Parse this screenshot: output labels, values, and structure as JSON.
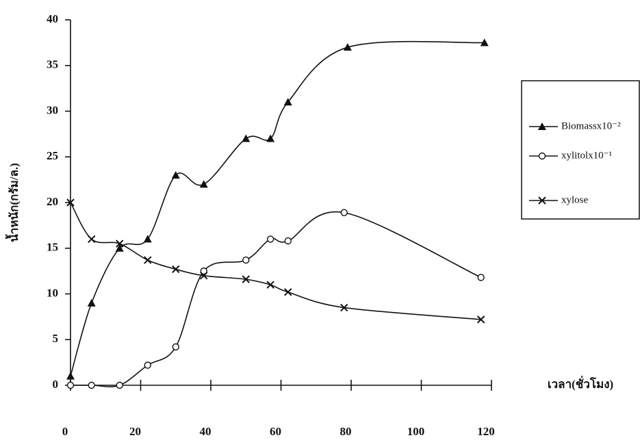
{
  "chart_data": {
    "type": "line",
    "x_label": "เวลา(ชั่วโมง)",
    "y_label": "น้ำหนัก(กรัม/ล.)",
    "xlim": [
      0,
      120
    ],
    "xticks": [
      0,
      20,
      40,
      60,
      80,
      100,
      120
    ],
    "ylim": [
      0,
      40
    ],
    "yticks": [
      0,
      5,
      10,
      15,
      20,
      25,
      30,
      35,
      40
    ],
    "legend_position": "right",
    "series": [
      {
        "name": "Biomassx10⁻²",
        "color": "#111111",
        "marker": "triangle",
        "x": [
          0,
          6,
          14,
          22,
          30,
          38,
          50,
          57,
          62,
          79,
          118
        ],
        "values": [
          1,
          9,
          15,
          16,
          23,
          22,
          27,
          27,
          31,
          37,
          37.5
        ]
      },
      {
        "name": "xylitolx10⁻¹",
        "color": "#111111",
        "marker": "circle",
        "x": [
          0,
          6,
          14,
          22,
          30,
          38,
          50,
          57,
          62,
          78,
          117
        ],
        "values": [
          0,
          0,
          0,
          2.2,
          4.2,
          12.5,
          13.7,
          16,
          15.8,
          18.9,
          11.8
        ]
      },
      {
        "name": "xylose",
        "color": "#111111",
        "marker": "cross",
        "x": [
          0,
          6,
          14,
          22,
          30,
          38,
          50,
          57,
          62,
          78,
          117
        ],
        "values": [
          20,
          16,
          15.5,
          13.7,
          12.7,
          12,
          11.6,
          11,
          10.2,
          8.5,
          7.2
        ]
      }
    ]
  }
}
